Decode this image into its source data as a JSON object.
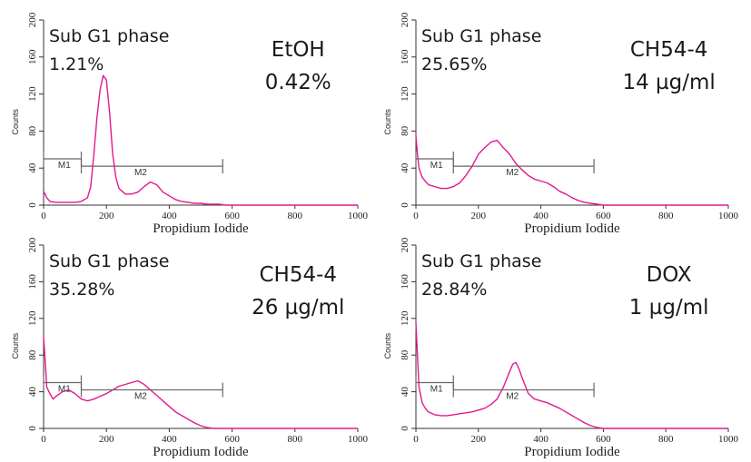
{
  "chart_data": [
    {
      "type": "area",
      "xlabel": "Propidium Iodide",
      "ylabel": "Counts",
      "xlim": [
        0,
        1000
      ],
      "ylim": [
        0,
        200
      ],
      "xticks": [
        "0",
        "200",
        "400",
        "600",
        "800",
        "1000"
      ],
      "yticks": [
        "0",
        "40",
        "80",
        "120",
        "160",
        "200"
      ],
      "annotation_phase": "Sub G1 phase",
      "annotation_phase_value": "1.21%",
      "treatment": "EtOH",
      "treatment_value": "0.42%",
      "markers": [
        {
          "label": "M1",
          "x": [
            0,
            120
          ],
          "y": 50
        },
        {
          "label": "M2",
          "x": [
            120,
            570
          ],
          "y": 42
        }
      ],
      "series": [
        {
          "color": "#e2198f",
          "x": [
            0,
            10,
            20,
            40,
            60,
            80,
            100,
            120,
            140,
            150,
            160,
            170,
            180,
            190,
            200,
            210,
            220,
            230,
            240,
            260,
            280,
            300,
            320,
            340,
            360,
            380,
            400,
            420,
            440,
            460,
            480,
            500,
            520,
            540,
            560,
            580,
            600,
            650,
            700,
            800,
            1000
          ],
          "y": [
            15,
            8,
            4,
            3,
            3,
            3,
            3,
            4,
            8,
            20,
            55,
            95,
            125,
            140,
            135,
            100,
            55,
            30,
            18,
            12,
            12,
            14,
            20,
            25,
            22,
            14,
            10,
            6,
            4,
            3,
            2,
            2,
            1,
            1,
            1,
            0,
            0,
            0,
            0,
            0,
            0
          ]
        }
      ]
    },
    {
      "type": "area",
      "xlabel": "Propidium Iodide",
      "ylabel": "Counts",
      "xlim": [
        0,
        1000
      ],
      "ylim": [
        0,
        200
      ],
      "xticks": [
        "0",
        "200",
        "400",
        "600",
        "800",
        "1000"
      ],
      "yticks": [
        "0",
        "40",
        "80",
        "120",
        "160",
        "200"
      ],
      "annotation_phase": "Sub G1 phase",
      "annotation_phase_value": "25.65%",
      "treatment": "CH54-4",
      "treatment_value": "14 µg/ml",
      "markers": [
        {
          "label": "M1",
          "x": [
            0,
            120
          ],
          "y": 50
        },
        {
          "label": "M2",
          "x": [
            120,
            570
          ],
          "y": 42
        }
      ],
      "series": [
        {
          "color": "#e2198f",
          "x": [
            0,
            5,
            10,
            20,
            40,
            60,
            80,
            100,
            120,
            140,
            160,
            180,
            200,
            220,
            240,
            260,
            270,
            280,
            300,
            320,
            340,
            360,
            380,
            400,
            420,
            440,
            460,
            480,
            500,
            520,
            540,
            560,
            580,
            600,
            1000
          ],
          "y": [
            75,
            55,
            40,
            30,
            22,
            20,
            18,
            18,
            20,
            24,
            32,
            42,
            55,
            62,
            68,
            70,
            66,
            62,
            55,
            45,
            38,
            32,
            28,
            26,
            24,
            20,
            15,
            12,
            8,
            5,
            3,
            2,
            1,
            0,
            0
          ]
        }
      ]
    },
    {
      "type": "area",
      "xlabel": "Propidium Iodide",
      "ylabel": "Counts",
      "xlim": [
        0,
        1000
      ],
      "ylim": [
        0,
        200
      ],
      "xticks": [
        "0",
        "200",
        "400",
        "600",
        "800",
        "1000"
      ],
      "yticks": [
        "0",
        "40",
        "80",
        "120",
        "160",
        "200"
      ],
      "annotation_phase": "Sub G1 phase",
      "annotation_phase_value": "35.28%",
      "treatment": "CH54-4",
      "treatment_value": "26 µg/ml",
      "markers": [
        {
          "label": "M1",
          "x": [
            0,
            120
          ],
          "y": 50
        },
        {
          "label": "M2",
          "x": [
            120,
            570
          ],
          "y": 42
        }
      ],
      "series": [
        {
          "color": "#e2198f",
          "x": [
            0,
            5,
            10,
            20,
            30,
            40,
            60,
            80,
            100,
            120,
            140,
            160,
            180,
            200,
            220,
            240,
            260,
            280,
            300,
            320,
            340,
            360,
            380,
            400,
            420,
            440,
            460,
            480,
            500,
            520,
            540,
            560,
            1000
          ],
          "y": [
            100,
            75,
            45,
            38,
            32,
            35,
            40,
            42,
            38,
            32,
            30,
            32,
            35,
            38,
            42,
            46,
            48,
            50,
            52,
            48,
            42,
            36,
            30,
            24,
            18,
            14,
            10,
            6,
            3,
            1,
            0,
            0,
            0
          ]
        }
      ]
    },
    {
      "type": "area",
      "xlabel": "Propidium Iodide",
      "ylabel": "Counts",
      "xlim": [
        0,
        1000
      ],
      "ylim": [
        0,
        200
      ],
      "xticks": [
        "0",
        "200",
        "400",
        "600",
        "800",
        "1000"
      ],
      "yticks": [
        "0",
        "40",
        "80",
        "120",
        "160",
        "200"
      ],
      "annotation_phase": "Sub G1 phase",
      "annotation_phase_value": "28.84%",
      "treatment": "DOX",
      "treatment_value": "1 µg/ml",
      "markers": [
        {
          "label": "M1",
          "x": [
            0,
            120
          ],
          "y": 50
        },
        {
          "label": "M2",
          "x": [
            120,
            570
          ],
          "y": 42
        }
      ],
      "series": [
        {
          "color": "#e2198f",
          "x": [
            0,
            5,
            10,
            20,
            30,
            40,
            60,
            80,
            100,
            120,
            140,
            160,
            180,
            200,
            220,
            240,
            260,
            280,
            300,
            310,
            320,
            330,
            340,
            360,
            380,
            400,
            420,
            440,
            460,
            480,
            500,
            520,
            540,
            560,
            580,
            600,
            1000
          ],
          "y": [
            115,
            80,
            45,
            28,
            22,
            18,
            15,
            14,
            14,
            15,
            16,
            17,
            18,
            20,
            22,
            26,
            32,
            45,
            62,
            70,
            72,
            65,
            55,
            38,
            32,
            30,
            28,
            25,
            22,
            18,
            14,
            10,
            6,
            3,
            1,
            0,
            0
          ]
        }
      ]
    }
  ]
}
